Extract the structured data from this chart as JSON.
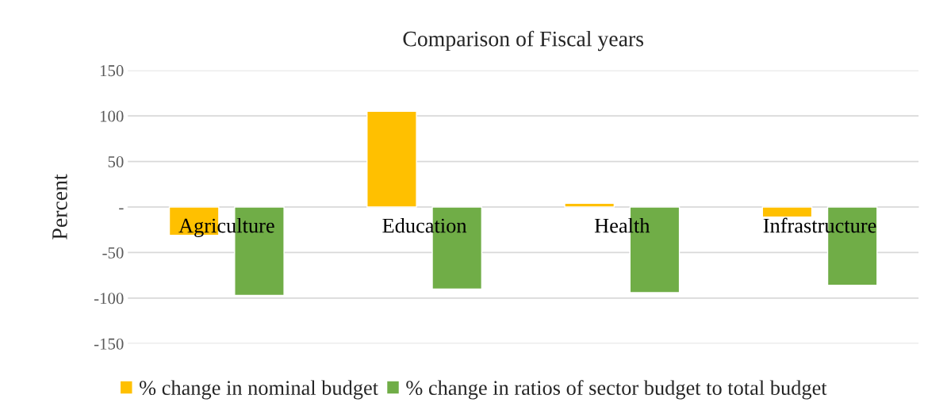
{
  "chart_data": {
    "type": "bar",
    "title": "Comparison of Fiscal years",
    "ylabel": "Percent",
    "categories": [
      "Agriculture",
      "Education",
      "Health",
      "Infrastructure"
    ],
    "series": [
      {
        "name": "% change in nominal budget",
        "color": "#ffc000",
        "values": [
          -31,
          105,
          4,
          -11
        ]
      },
      {
        "name": "% change in ratios of sector budget to total budget",
        "color": "#70ad47",
        "values": [
          -97,
          -90,
          -94,
          -86
        ]
      }
    ],
    "ylim": [
      -150,
      150
    ],
    "yticks": [
      -150,
      -100,
      -50,
      {
        "value": 0,
        "label": "-"
      },
      50,
      100,
      150
    ],
    "grid": "y",
    "legend": "bottom"
  }
}
